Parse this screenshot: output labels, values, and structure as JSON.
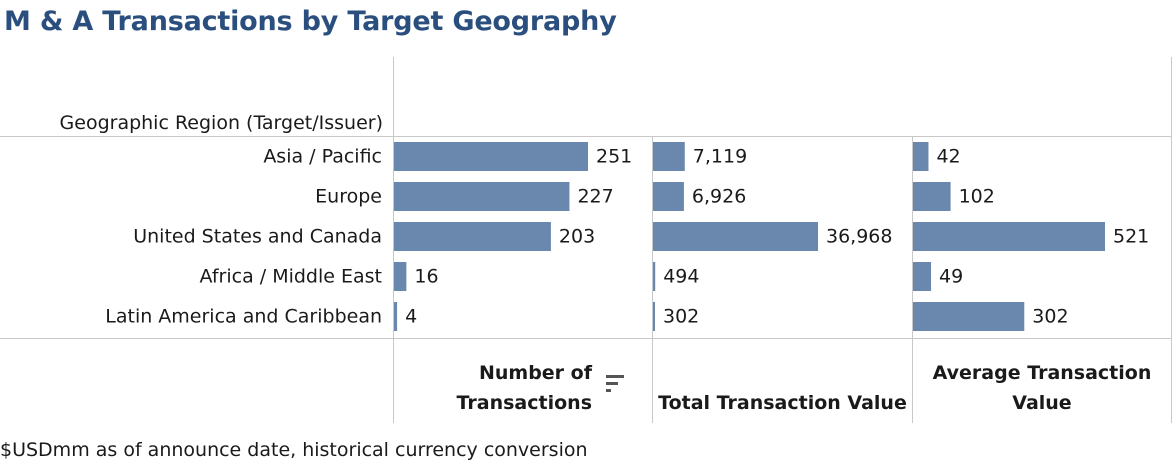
{
  "title": "M & A Transactions by Target Geography",
  "region_header": "Geographic Region (Target/Issuer)",
  "footer_note": "$USDmm as of announce date, historical currency conversion",
  "sort_icon": "sort-descending-icon",
  "bar_color": "#6a88ad",
  "title_color": "#2a4f7f",
  "chart_data": {
    "type": "bar",
    "orientation": "horizontal",
    "categories": [
      "Asia / Pacific",
      "Europe",
      "United States and Canada",
      "Africa / Middle East",
      "Latin America and Caribbean"
    ],
    "series": [
      {
        "name": "Number of Transactions",
        "title_lines": [
          "Number of",
          "Transactions"
        ],
        "values": [
          251,
          227,
          203,
          16,
          4
        ],
        "labels": [
          "251",
          "227",
          "203",
          "16",
          "4"
        ]
      },
      {
        "name": "Total Transaction Value",
        "title_lines": [
          "Total Transaction Value"
        ],
        "values": [
          7119,
          6926,
          36968,
          494,
          302
        ],
        "labels": [
          "7,119",
          "6,926",
          "36,968",
          "494",
          "302"
        ]
      },
      {
        "name": "Average Transaction Value",
        "title_lines": [
          "Average Transaction",
          "Value"
        ],
        "values": [
          42,
          102,
          521,
          49,
          302
        ],
        "labels": [
          "42",
          "102",
          "521",
          "49",
          "302"
        ]
      }
    ],
    "grid": false,
    "legend": "none"
  }
}
